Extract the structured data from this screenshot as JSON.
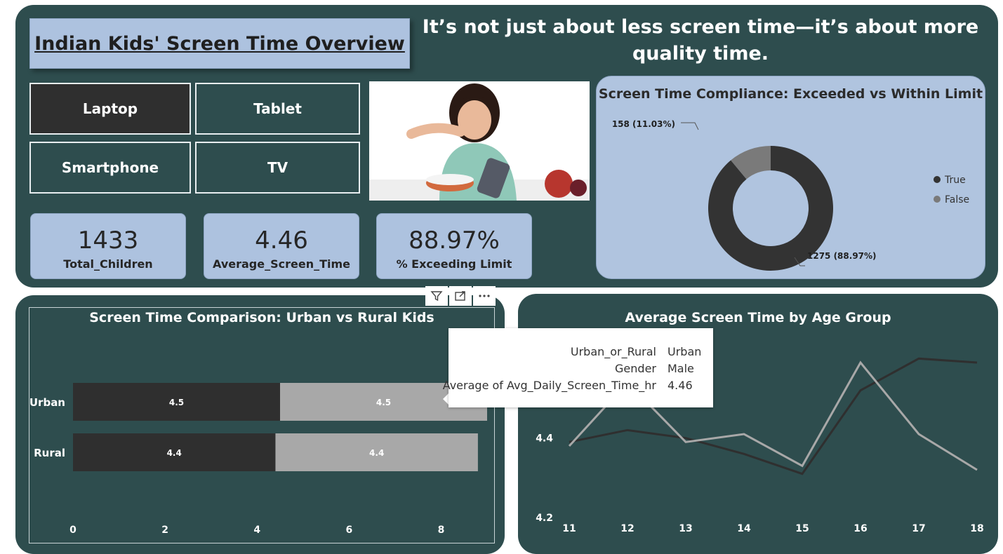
{
  "header": {
    "title": "Indian Kids' Screen Time Overview",
    "tagline": "It’s not just about less screen time—it’s about more quality time."
  },
  "slicers": [
    {
      "label": "Laptop",
      "selected": true
    },
    {
      "label": "Tablet",
      "selected": false
    },
    {
      "label": "Smartphone",
      "selected": false
    },
    {
      "label": "TV",
      "selected": false
    }
  ],
  "kpis": [
    {
      "value": "1433",
      "label": "Total_Children"
    },
    {
      "value": "4.46",
      "label": "Average_Screen_Time"
    },
    {
      "value": "88.97%",
      "label": "% Exceeding Limit"
    }
  ],
  "colors": {
    "panel": "#2e4d4e",
    "card": "#b0c4df",
    "dark": "#2f2f2f",
    "light_series": "#a8a8a8",
    "true_slice": "#333333",
    "false_slice": "#7a7a7a"
  },
  "toolbar": {
    "icons": [
      "filter-icon",
      "focus-mode-icon",
      "more-options-icon"
    ]
  },
  "tooltip": {
    "rows": [
      {
        "key": "Urban_or_Rural",
        "value": "Urban"
      },
      {
        "key": "Gender",
        "value": "Male"
      },
      {
        "key": "Average of Avg_Daily_Screen_Time_hr",
        "value": "4.46"
      }
    ]
  },
  "chart_data": [
    {
      "type": "pie",
      "title": "Screen Time Compliance: Exceeded vs Within Limit",
      "legend_position": "right",
      "slices": [
        {
          "name": "True",
          "value": 1275,
          "label": "1275 (88.97%)"
        },
        {
          "name": "False",
          "value": 158,
          "label": "158 (11.03%)"
        }
      ]
    },
    {
      "type": "bar",
      "orientation": "horizontal",
      "stacked": true,
      "title": "Screen Time Comparison: Urban vs Rural Kids",
      "categories": [
        "Urban",
        "Rural"
      ],
      "series": [
        {
          "values": [
            4.5,
            4.4
          ],
          "labels": [
            "4.5",
            "4.4"
          ]
        },
        {
          "values": [
            4.5,
            4.4
          ],
          "labels": [
            "4.5",
            "4.4"
          ]
        }
      ],
      "xlim": [
        0,
        9
      ],
      "xticks": [
        "0",
        "2",
        "4",
        "6",
        "8"
      ]
    },
    {
      "type": "line",
      "title": "Average Screen Time by Age Group",
      "x": [
        11,
        12,
        13,
        14,
        15,
        16,
        17,
        18
      ],
      "xticks": [
        "11",
        "12",
        "13",
        "14",
        "15",
        "16",
        "17",
        "18"
      ],
      "yticks": [
        "4.4",
        "4.2"
      ],
      "ylim": [
        4.2,
        4.62
      ],
      "series": [
        {
          "values": [
            4.39,
            4.42,
            4.4,
            4.36,
            4.31,
            4.52,
            4.6,
            4.59
          ]
        },
        {
          "values": [
            4.38,
            4.54,
            4.39,
            4.41,
            4.33,
            4.59,
            4.41,
            4.32
          ]
        }
      ]
    }
  ]
}
